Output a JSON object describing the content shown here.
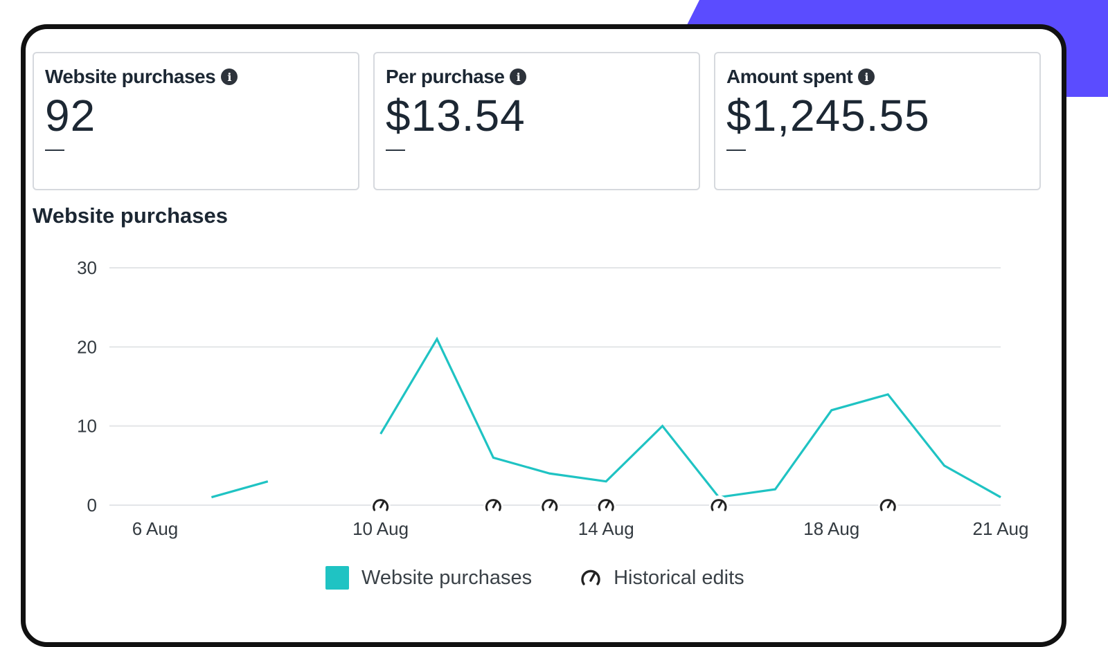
{
  "kpis": [
    {
      "title": "Website purchases",
      "value": "92",
      "delta": "—"
    },
    {
      "title": "Per purchase",
      "value": "$13.54",
      "delta": "—"
    },
    {
      "title": "Amount spent",
      "value": "$1,245.55",
      "delta": "—"
    }
  ],
  "chart_title": "Website purchases",
  "colors": {
    "series": "#1fc3c3",
    "accent": "#5b4cff",
    "grid": "#e3e5e8"
  },
  "chart_data": {
    "type": "line",
    "x": [
      "6 Aug",
      "7 Aug",
      "8 Aug",
      "9 Aug",
      "10 Aug",
      "11 Aug",
      "12 Aug",
      "13 Aug",
      "14 Aug",
      "15 Aug",
      "16 Aug",
      "17 Aug",
      "18 Aug",
      "19 Aug",
      "20 Aug",
      "21 Aug"
    ],
    "x_tick_labels": [
      "6 Aug",
      "10 Aug",
      "14 Aug",
      "18 Aug",
      "21 Aug"
    ],
    "series": [
      {
        "name": "Website purchases",
        "values": [
          null,
          1,
          3,
          null,
          9,
          21,
          6,
          4,
          3,
          10,
          1,
          2,
          12,
          14,
          5,
          1
        ]
      }
    ],
    "historical_edits": [
      "10 Aug",
      "12 Aug",
      "13 Aug",
      "14 Aug",
      "16 Aug",
      "19 Aug"
    ],
    "ylim": [
      0,
      30
    ],
    "yticks": [
      0,
      10,
      20,
      30
    ],
    "grid": true,
    "legend_position": "bottom-center"
  },
  "legend": {
    "series_label": "Website purchases",
    "edits_label": "Historical edits",
    "edits_icon": "historical-edit-icon"
  }
}
